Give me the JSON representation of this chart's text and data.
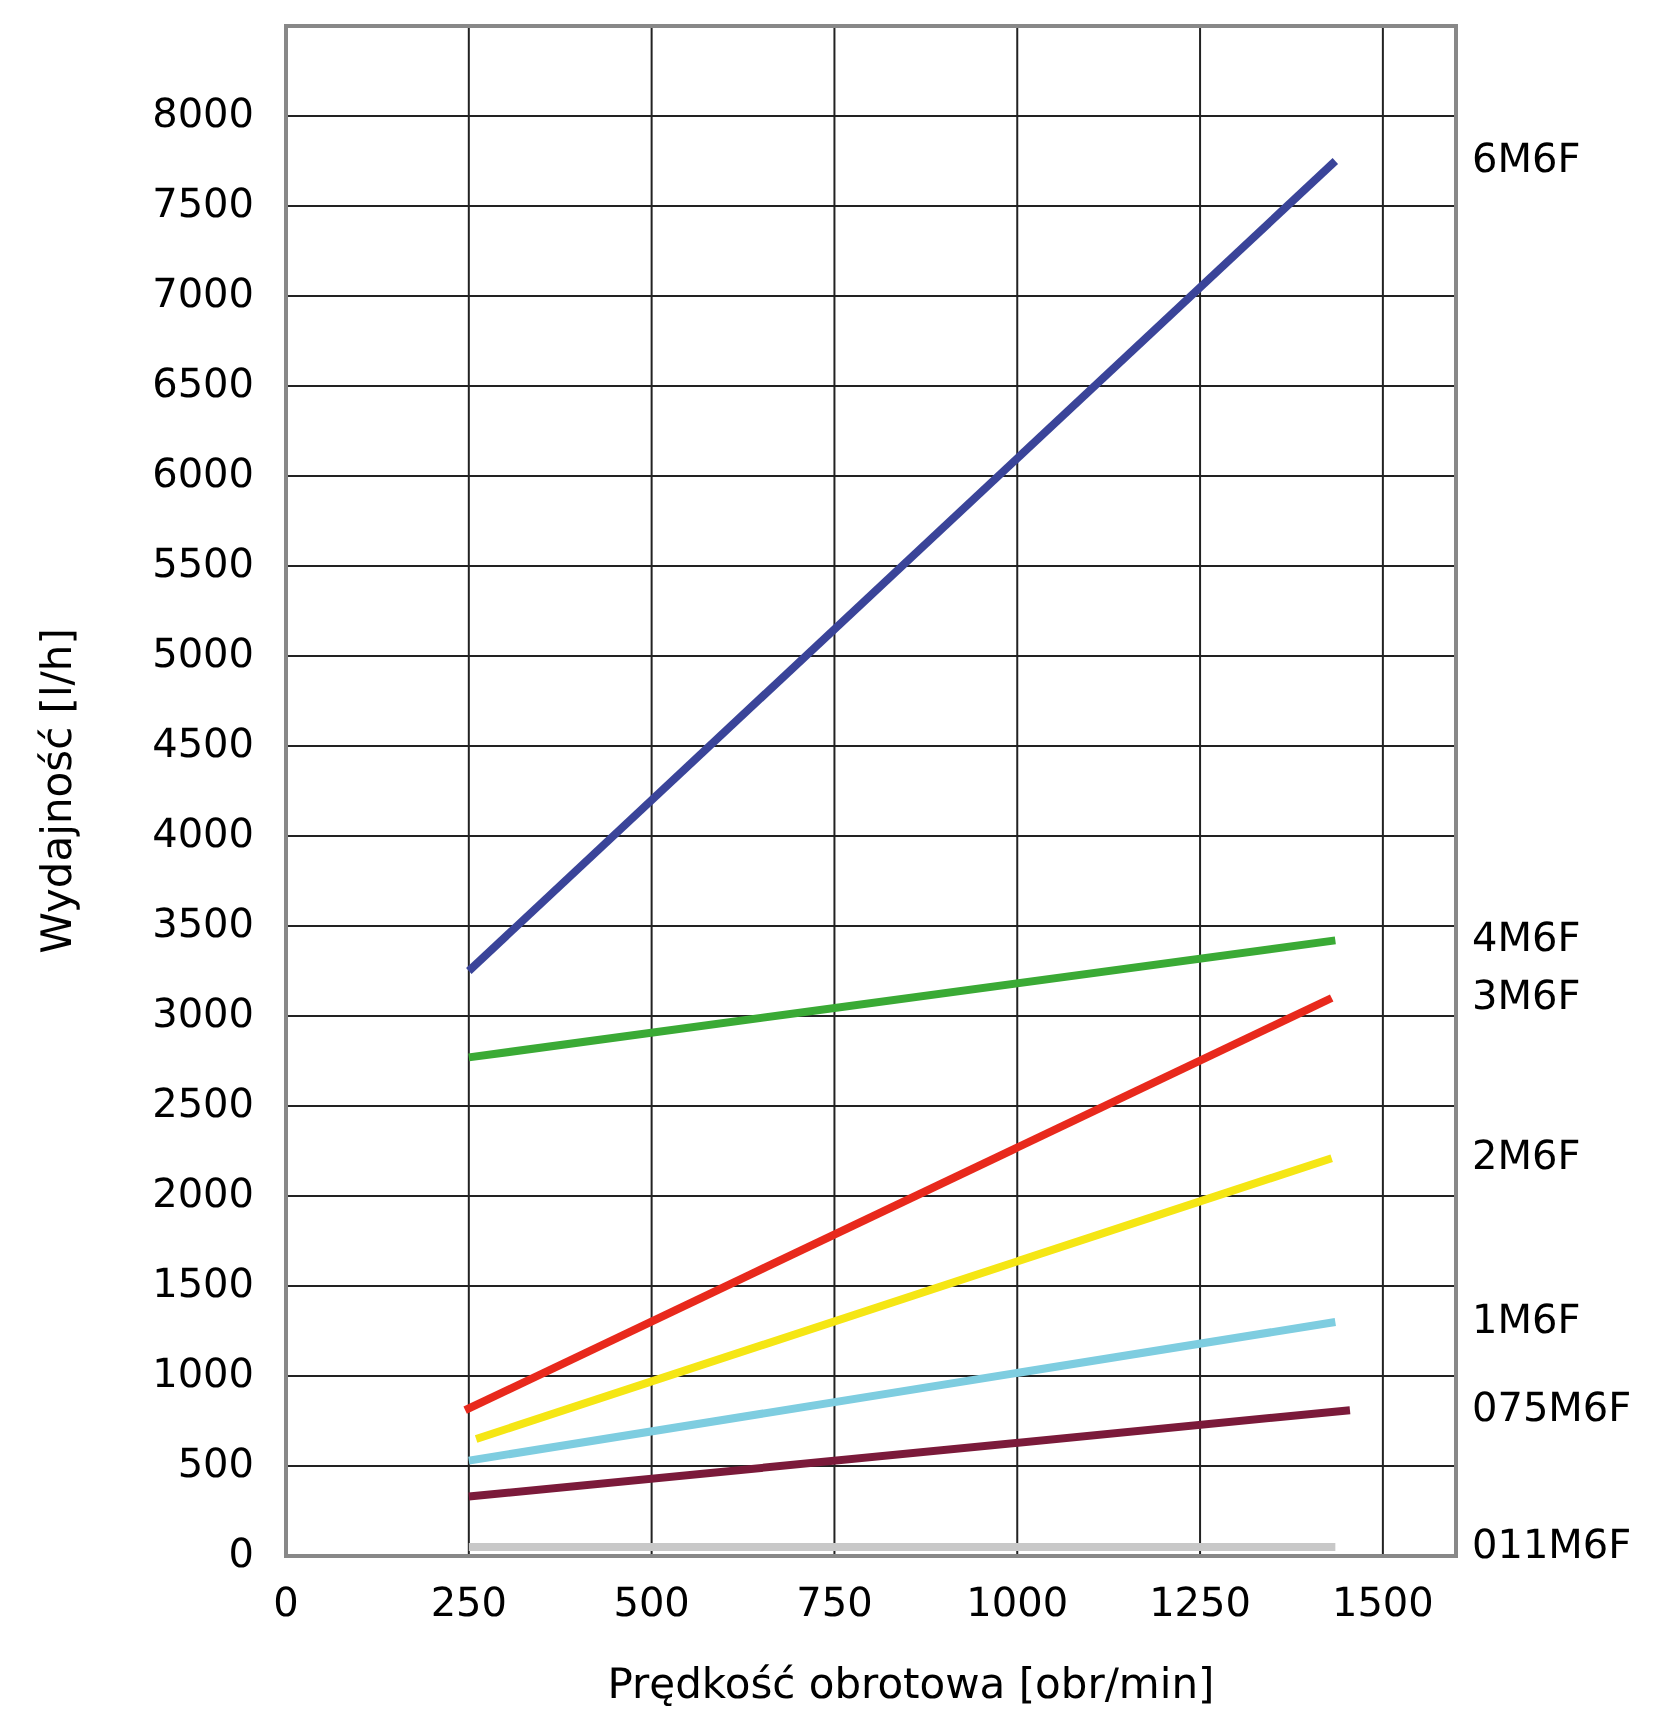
{
  "chart_data": {
    "type": "line",
    "xlabel": "Prędkość obrotowa [obr/min]",
    "ylabel": "Wydajność [l/h]",
    "xlim": [
      0,
      1600
    ],
    "xticks": [
      0,
      250,
      500,
      750,
      1000,
      1250,
      1500
    ],
    "ylim": [
      0,
      8500
    ],
    "yticks": [
      0,
      500,
      1000,
      1500,
      2000,
      2500,
      3000,
      3500,
      4000,
      4500,
      5000,
      5500,
      6000,
      6500,
      7000,
      7500,
      8000
    ],
    "grid": true,
    "marker": "none",
    "line_style": "solid",
    "series": [
      {
        "name": "6M6F",
        "color": "#3a4499",
        "x": [
          250,
          1435
        ],
        "values": [
          3250,
          7750
        ]
      },
      {
        "name": "4M6F",
        "color": "#3aaa35",
        "x": [
          250,
          1435
        ],
        "values": [
          2770,
          3420
        ]
      },
      {
        "name": "3M6F",
        "color": "#e8291c",
        "x": [
          245,
          1430
        ],
        "values": [
          810,
          3100
        ]
      },
      {
        "name": "2M6F",
        "color": "#f5e614",
        "x": [
          260,
          1430
        ],
        "values": [
          650,
          2210
        ]
      },
      {
        "name": "1M6F",
        "color": "#7ecde0",
        "x": [
          250,
          1435
        ],
        "values": [
          530,
          1300
        ]
      },
      {
        "name": "075M6F",
        "color": "#7b1a3a",
        "x": [
          250,
          1455
        ],
        "values": [
          330,
          810
        ]
      },
      {
        "name": "011M6F",
        "color": "#c8c8c8",
        "x": [
          250,
          1435
        ],
        "values": [
          50,
          50
        ]
      }
    ]
  }
}
